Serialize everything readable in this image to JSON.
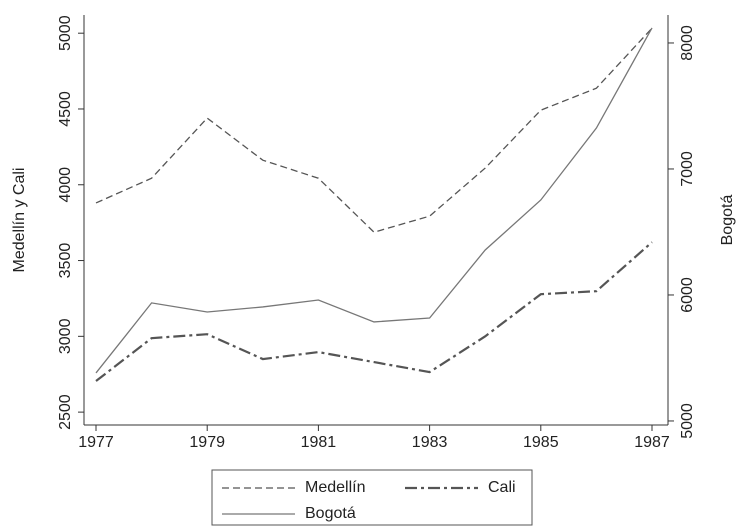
{
  "chart_data": {
    "type": "line",
    "x": [
      1977,
      1978,
      1979,
      1980,
      1981,
      1982,
      1983,
      1984,
      1985,
      1986,
      1987
    ],
    "series": [
      {
        "name": "Medellín",
        "color": "#555555",
        "dash": "dash",
        "values": [
          3880,
          4043,
          4440,
          4162,
          4043,
          3687,
          3793,
          4110,
          4492,
          4637,
          5033
        ]
      },
      {
        "name": "Cali",
        "color": "#555555",
        "dash": "dashdot",
        "values": [
          2705,
          2988,
          3014,
          2850,
          2896,
          2830,
          2764,
          3000,
          3278,
          3298,
          3621
        ]
      },
      {
        "name": "Bogotá",
        "color": "#777777",
        "dash": "solid",
        "axis": "y2",
        "values": [
          5381,
          5937,
          5865,
          5905,
          5960,
          5786,
          5817,
          6357,
          6754,
          7325,
          8119
        ]
      }
    ],
    "xlim": [
      1977,
      1987
    ],
    "xticks": [
      1977,
      1979,
      1981,
      1983,
      1985,
      1987
    ],
    "ylim": [
      2415,
      5120
    ],
    "yticks": [
      2500,
      3000,
      3500,
      4000,
      4500,
      5000
    ],
    "y2lim": [
      4968,
      8222
    ],
    "y2ticks": [
      5000,
      6000,
      7000,
      8000
    ],
    "ylabel": "Medellín y Cali",
    "y2label": "Bogotá",
    "legend": "bottom"
  }
}
